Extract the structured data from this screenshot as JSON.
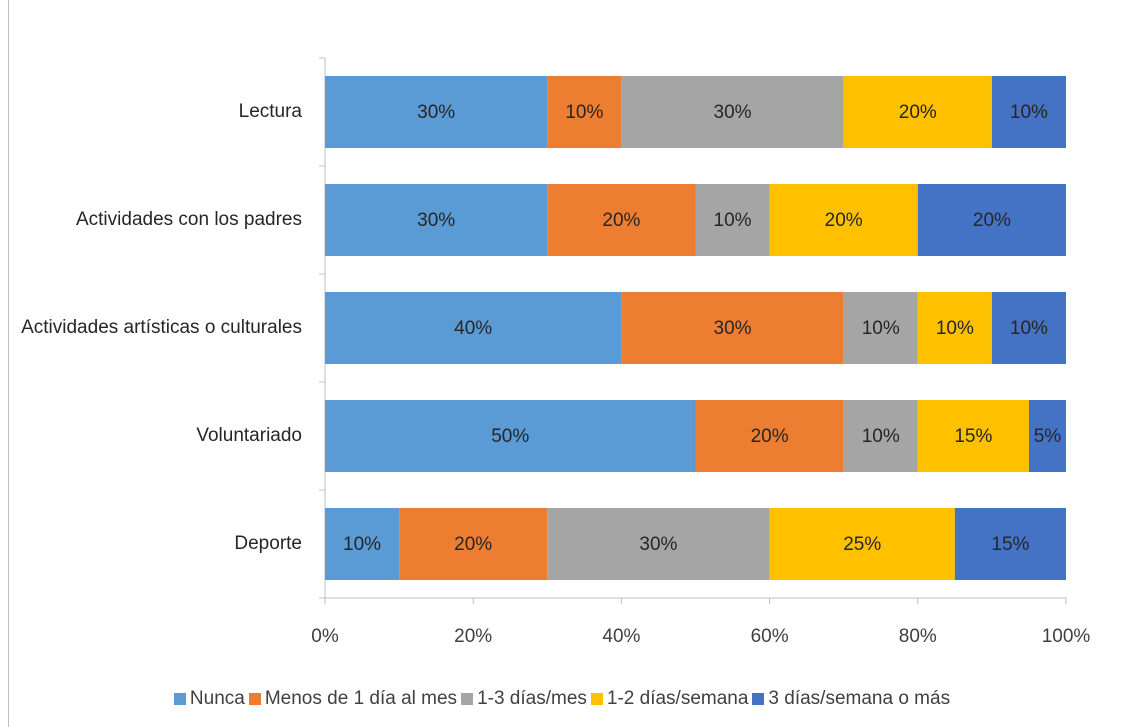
{
  "chart_data": {
    "type": "stacked-barh",
    "categories": [
      "Lectura",
      "Actividades con los padres",
      "Actividades artísticas o culturales",
      "Voluntariado",
      "Deporte"
    ],
    "series": [
      {
        "name": "Nunca",
        "color": "#5b9bd5",
        "values": [
          30,
          30,
          40,
          50,
          10
        ],
        "value_labels": [
          "30%",
          "30%",
          "40%",
          "50%",
          "10%"
        ]
      },
      {
        "name": "Menos de 1 día al mes",
        "color": "#ed7d31",
        "values": [
          10,
          20,
          30,
          20,
          20
        ],
        "value_labels": [
          "10%",
          "20%",
          "30%",
          "20%",
          "20%"
        ]
      },
      {
        "name": "1-3 días/mes",
        "color": "#a5a5a5",
        "values": [
          30,
          10,
          10,
          10,
          30
        ],
        "value_labels": [
          "30%",
          "10%",
          "10%",
          "10%",
          "30%"
        ]
      },
      {
        "name": "1-2 días/semana",
        "color": "#ffc000",
        "values": [
          20,
          20,
          10,
          15,
          25
        ],
        "value_labels": [
          "20%",
          "20%",
          "10%",
          "15%",
          "25%"
        ]
      },
      {
        "name": "3 días/semana o más",
        "color": "#4472c4",
        "values": [
          10,
          20,
          10,
          5,
          15
        ],
        "value_labels": [
          "10%",
          "20%",
          "10%",
          "5%",
          "15%"
        ]
      }
    ],
    "xlim": [
      0,
      100
    ],
    "xticks": [
      {
        "value": 0,
        "label": "0%"
      },
      {
        "value": 20,
        "label": "20%"
      },
      {
        "value": 40,
        "label": "40%"
      },
      {
        "value": 60,
        "label": "60%"
      },
      {
        "value": 80,
        "label": "80%"
      },
      {
        "value": 100,
        "label": "100%"
      }
    ],
    "legend": "bottom"
  }
}
